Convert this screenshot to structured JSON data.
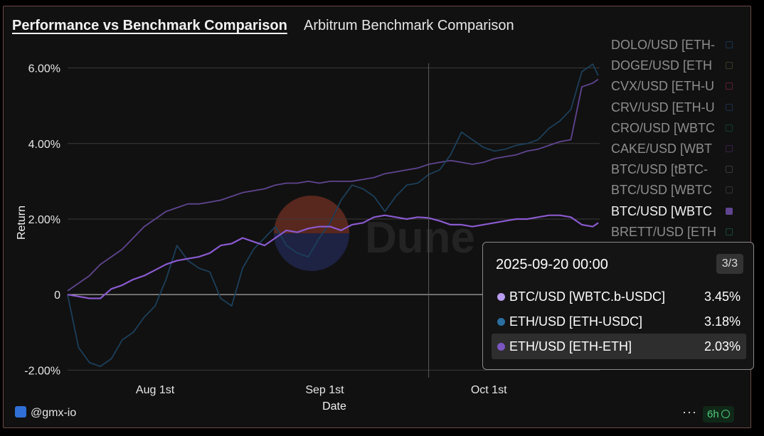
{
  "header": {
    "title": "Performance vs Benchmark Comparison",
    "subtitle": "Arbitrum Benchmark Comparison"
  },
  "chart_data": {
    "type": "line",
    "xlabel": "Date",
    "ylabel": "Return",
    "x_ticks": [
      "Aug 1st",
      "Sep 1st",
      "Oct 1st"
    ],
    "y_ticks": [
      "6.00%",
      "4.00%",
      "2.00%",
      "0",
      "-2.00%"
    ],
    "ylim": [
      -2.2,
      6.5
    ],
    "x_range": [
      "2025-07-16",
      "2025-10-21"
    ],
    "grid": true,
    "legend_position": "right",
    "crosshair_date": "2025-09-20",
    "series": [
      {
        "name": "BTC/USD [WBTC.b-USDC]",
        "color": "#5f4590",
        "x": [
          "2025-07-16",
          "2025-07-18",
          "2025-07-20",
          "2025-07-22",
          "2025-07-24",
          "2025-07-26",
          "2025-07-28",
          "2025-07-30",
          "2025-08-01",
          "2025-08-03",
          "2025-08-05",
          "2025-08-07",
          "2025-08-09",
          "2025-08-11",
          "2025-08-13",
          "2025-08-15",
          "2025-08-17",
          "2025-08-19",
          "2025-08-21",
          "2025-08-23",
          "2025-08-25",
          "2025-08-27",
          "2025-08-29",
          "2025-08-31",
          "2025-09-02",
          "2025-09-04",
          "2025-09-06",
          "2025-09-08",
          "2025-09-10",
          "2025-09-12",
          "2025-09-14",
          "2025-09-16",
          "2025-09-18",
          "2025-09-20",
          "2025-09-22",
          "2025-09-24",
          "2025-09-26",
          "2025-09-28",
          "2025-09-30",
          "2025-10-02",
          "2025-10-04",
          "2025-10-06",
          "2025-10-08",
          "2025-10-10",
          "2025-10-12",
          "2025-10-14",
          "2025-10-16",
          "2025-10-18",
          "2025-10-20",
          "2025-10-21"
        ],
        "values": [
          0.1,
          0.3,
          0.5,
          0.8,
          1.0,
          1.2,
          1.5,
          1.8,
          2.0,
          2.2,
          2.3,
          2.4,
          2.4,
          2.45,
          2.5,
          2.6,
          2.7,
          2.75,
          2.8,
          2.9,
          2.95,
          2.95,
          3.0,
          2.95,
          3.0,
          3.0,
          3.0,
          3.05,
          3.1,
          3.2,
          3.25,
          3.3,
          3.35,
          3.45,
          3.5,
          3.55,
          3.5,
          3.45,
          3.5,
          3.6,
          3.65,
          3.7,
          3.8,
          3.85,
          3.95,
          4.05,
          4.1,
          5.5,
          5.6,
          5.7
        ]
      },
      {
        "name": "ETH/USD [ETH-USDC]",
        "color": "#1c3f5a",
        "x": [
          "2025-07-16",
          "2025-07-18",
          "2025-07-20",
          "2025-07-22",
          "2025-07-24",
          "2025-07-26",
          "2025-07-28",
          "2025-07-30",
          "2025-08-01",
          "2025-08-03",
          "2025-08-05",
          "2025-08-07",
          "2025-08-09",
          "2025-08-11",
          "2025-08-13",
          "2025-08-15",
          "2025-08-17",
          "2025-08-19",
          "2025-08-21",
          "2025-08-23",
          "2025-08-25",
          "2025-08-27",
          "2025-08-29",
          "2025-08-31",
          "2025-09-02",
          "2025-09-04",
          "2025-09-06",
          "2025-09-08",
          "2025-09-10",
          "2025-09-12",
          "2025-09-14",
          "2025-09-16",
          "2025-09-18",
          "2025-09-20",
          "2025-09-22",
          "2025-09-24",
          "2025-09-26",
          "2025-09-28",
          "2025-09-30",
          "2025-10-02",
          "2025-10-04",
          "2025-10-06",
          "2025-10-08",
          "2025-10-10",
          "2025-10-12",
          "2025-10-14",
          "2025-10-16",
          "2025-10-18",
          "2025-10-20",
          "2025-10-21"
        ],
        "values": [
          0.0,
          -1.4,
          -1.8,
          -1.9,
          -1.7,
          -1.2,
          -1.0,
          -0.6,
          -0.3,
          0.4,
          1.3,
          0.9,
          0.7,
          0.6,
          -0.1,
          -0.3,
          0.7,
          1.2,
          1.5,
          1.8,
          1.3,
          1.1,
          1.0,
          1.5,
          1.9,
          2.5,
          2.9,
          2.8,
          2.6,
          2.2,
          2.6,
          2.9,
          2.95,
          3.18,
          3.3,
          3.7,
          4.3,
          4.1,
          3.9,
          3.8,
          3.85,
          3.95,
          4.0,
          4.1,
          4.4,
          4.6,
          4.9,
          5.9,
          6.1,
          5.8
        ]
      },
      {
        "name": "ETH/USD [ETH-ETH]",
        "color": "#8a5ad0",
        "x": [
          "2025-07-16",
          "2025-07-18",
          "2025-07-20",
          "2025-07-22",
          "2025-07-24",
          "2025-07-26",
          "2025-07-28",
          "2025-07-30",
          "2025-08-01",
          "2025-08-03",
          "2025-08-05",
          "2025-08-07",
          "2025-08-09",
          "2025-08-11",
          "2025-08-13",
          "2025-08-15",
          "2025-08-17",
          "2025-08-19",
          "2025-08-21",
          "2025-08-23",
          "2025-08-25",
          "2025-08-27",
          "2025-08-29",
          "2025-08-31",
          "2025-09-02",
          "2025-09-04",
          "2025-09-06",
          "2025-09-08",
          "2025-09-10",
          "2025-09-12",
          "2025-09-14",
          "2025-09-16",
          "2025-09-18",
          "2025-09-20",
          "2025-09-22",
          "2025-09-24",
          "2025-09-26",
          "2025-09-28",
          "2025-09-30",
          "2025-10-02",
          "2025-10-04",
          "2025-10-06",
          "2025-10-08",
          "2025-10-10",
          "2025-10-12",
          "2025-10-14",
          "2025-10-16",
          "2025-10-18",
          "2025-10-20",
          "2025-10-21"
        ],
        "values": [
          0.0,
          -0.05,
          -0.1,
          -0.1,
          0.15,
          0.25,
          0.4,
          0.5,
          0.65,
          0.8,
          0.9,
          0.95,
          1.0,
          1.1,
          1.3,
          1.35,
          1.5,
          1.4,
          1.3,
          1.5,
          1.7,
          1.65,
          1.75,
          1.8,
          1.8,
          1.7,
          1.85,
          1.9,
          2.05,
          2.1,
          2.05,
          2.0,
          2.05,
          2.03,
          1.95,
          1.85,
          1.85,
          1.8,
          1.85,
          1.9,
          1.95,
          2.0,
          2.0,
          2.05,
          2.1,
          2.1,
          2.05,
          1.85,
          1.8,
          1.9
        ]
      }
    ]
  },
  "legend": {
    "items": [
      {
        "label": "DOLO/USD [ETH-",
        "box_color": "#17354f",
        "active": false
      },
      {
        "label": "DOGE/USD [ETH",
        "box_color": "#3a3a26",
        "active": false
      },
      {
        "label": "CVX/USD [ETH-U",
        "box_color": "#5a1f33",
        "active": false
      },
      {
        "label": "CRV/USD [ETH-U",
        "box_color": "#1c2f4e",
        "active": false
      },
      {
        "label": "CRO/USD [WBTC",
        "box_color": "#123e2c",
        "active": false
      },
      {
        "label": "CAKE/USD [WBT",
        "box_color": "#3a1f48",
        "active": false
      },
      {
        "label": "BTC/USD [tBTC-",
        "box_color": "#3a3a3a",
        "active": false
      },
      {
        "label": "BTC/USD [WBTC",
        "box_color": "#333",
        "active": false
      },
      {
        "label": "BTC/USD [WBTC",
        "box_color": "#5f4590",
        "active": true
      },
      {
        "label": "BRETT/USD [ETH",
        "box_color": "#134a34",
        "active": false
      }
    ]
  },
  "tooltip": {
    "date": "2025-09-20 00:00",
    "page": "3/3",
    "rows": [
      {
        "label": "BTC/USD [WBTC.b-USDC]",
        "value": "3.45%",
        "color": "#b79cf0",
        "highlight": false
      },
      {
        "label": "ETH/USD [ETH-USDC]",
        "value": "3.18%",
        "color": "#2b6fa0",
        "highlight": false
      },
      {
        "label": "ETH/USD [ETH-ETH]",
        "value": "2.03%",
        "color": "#7b55c0",
        "highlight": true
      }
    ]
  },
  "watermark": "Dune",
  "footer": {
    "user": "@gmx-io",
    "more": "···",
    "refresh": "6h"
  }
}
